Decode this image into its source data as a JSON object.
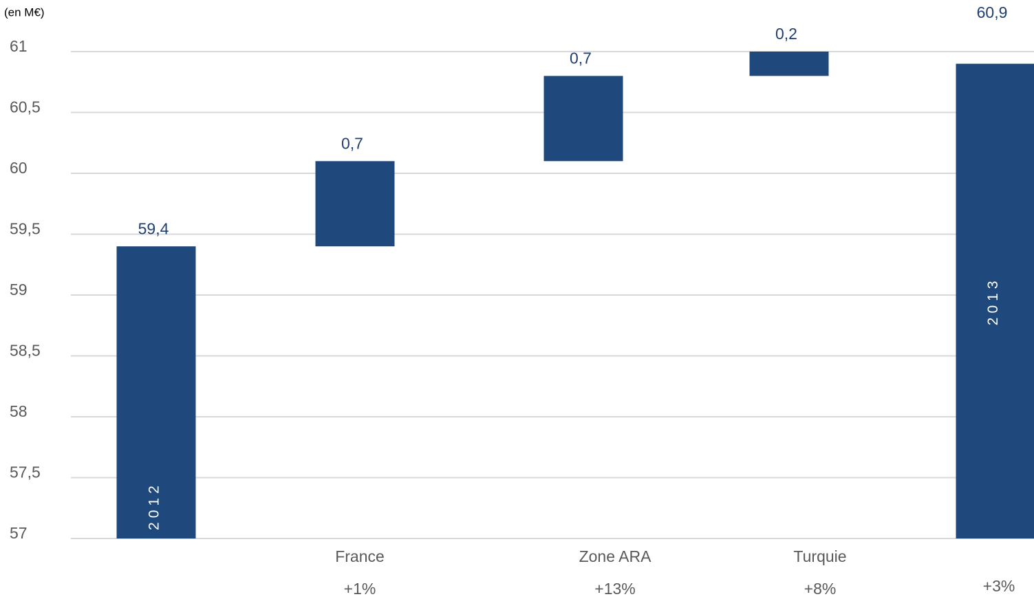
{
  "chart_data": {
    "type": "waterfall",
    "unit_label": "(en M€)",
    "categories": [
      null,
      "France",
      "Zone ARA",
      "Turquie",
      null
    ],
    "bar_labels": [
      "2012",
      null,
      null,
      null,
      "2013"
    ],
    "growth_labels": [
      null,
      "+1%",
      "+13%",
      "+8%",
      "+3%"
    ],
    "measures": [
      "total",
      "relative",
      "relative",
      "relative",
      "total"
    ],
    "values": [
      59.4,
      0.7,
      0.7,
      0.2,
      60.9
    ],
    "value_labels": [
      "59,4",
      "0,7",
      "0,7",
      "0,2",
      "60,9"
    ],
    "color": "#1f487c",
    "ylim": [
      57,
      61
    ],
    "yticks": [
      57,
      {
        "value": 57.5,
        "label": "57,5"
      },
      58,
      {
        "value": 58.5,
        "label": "58,5"
      },
      59,
      {
        "value": 59.5,
        "label": "59,5"
      },
      60,
      {
        "value": 60.5,
        "label": "60,5"
      },
      61
    ],
    "grid": true
  }
}
